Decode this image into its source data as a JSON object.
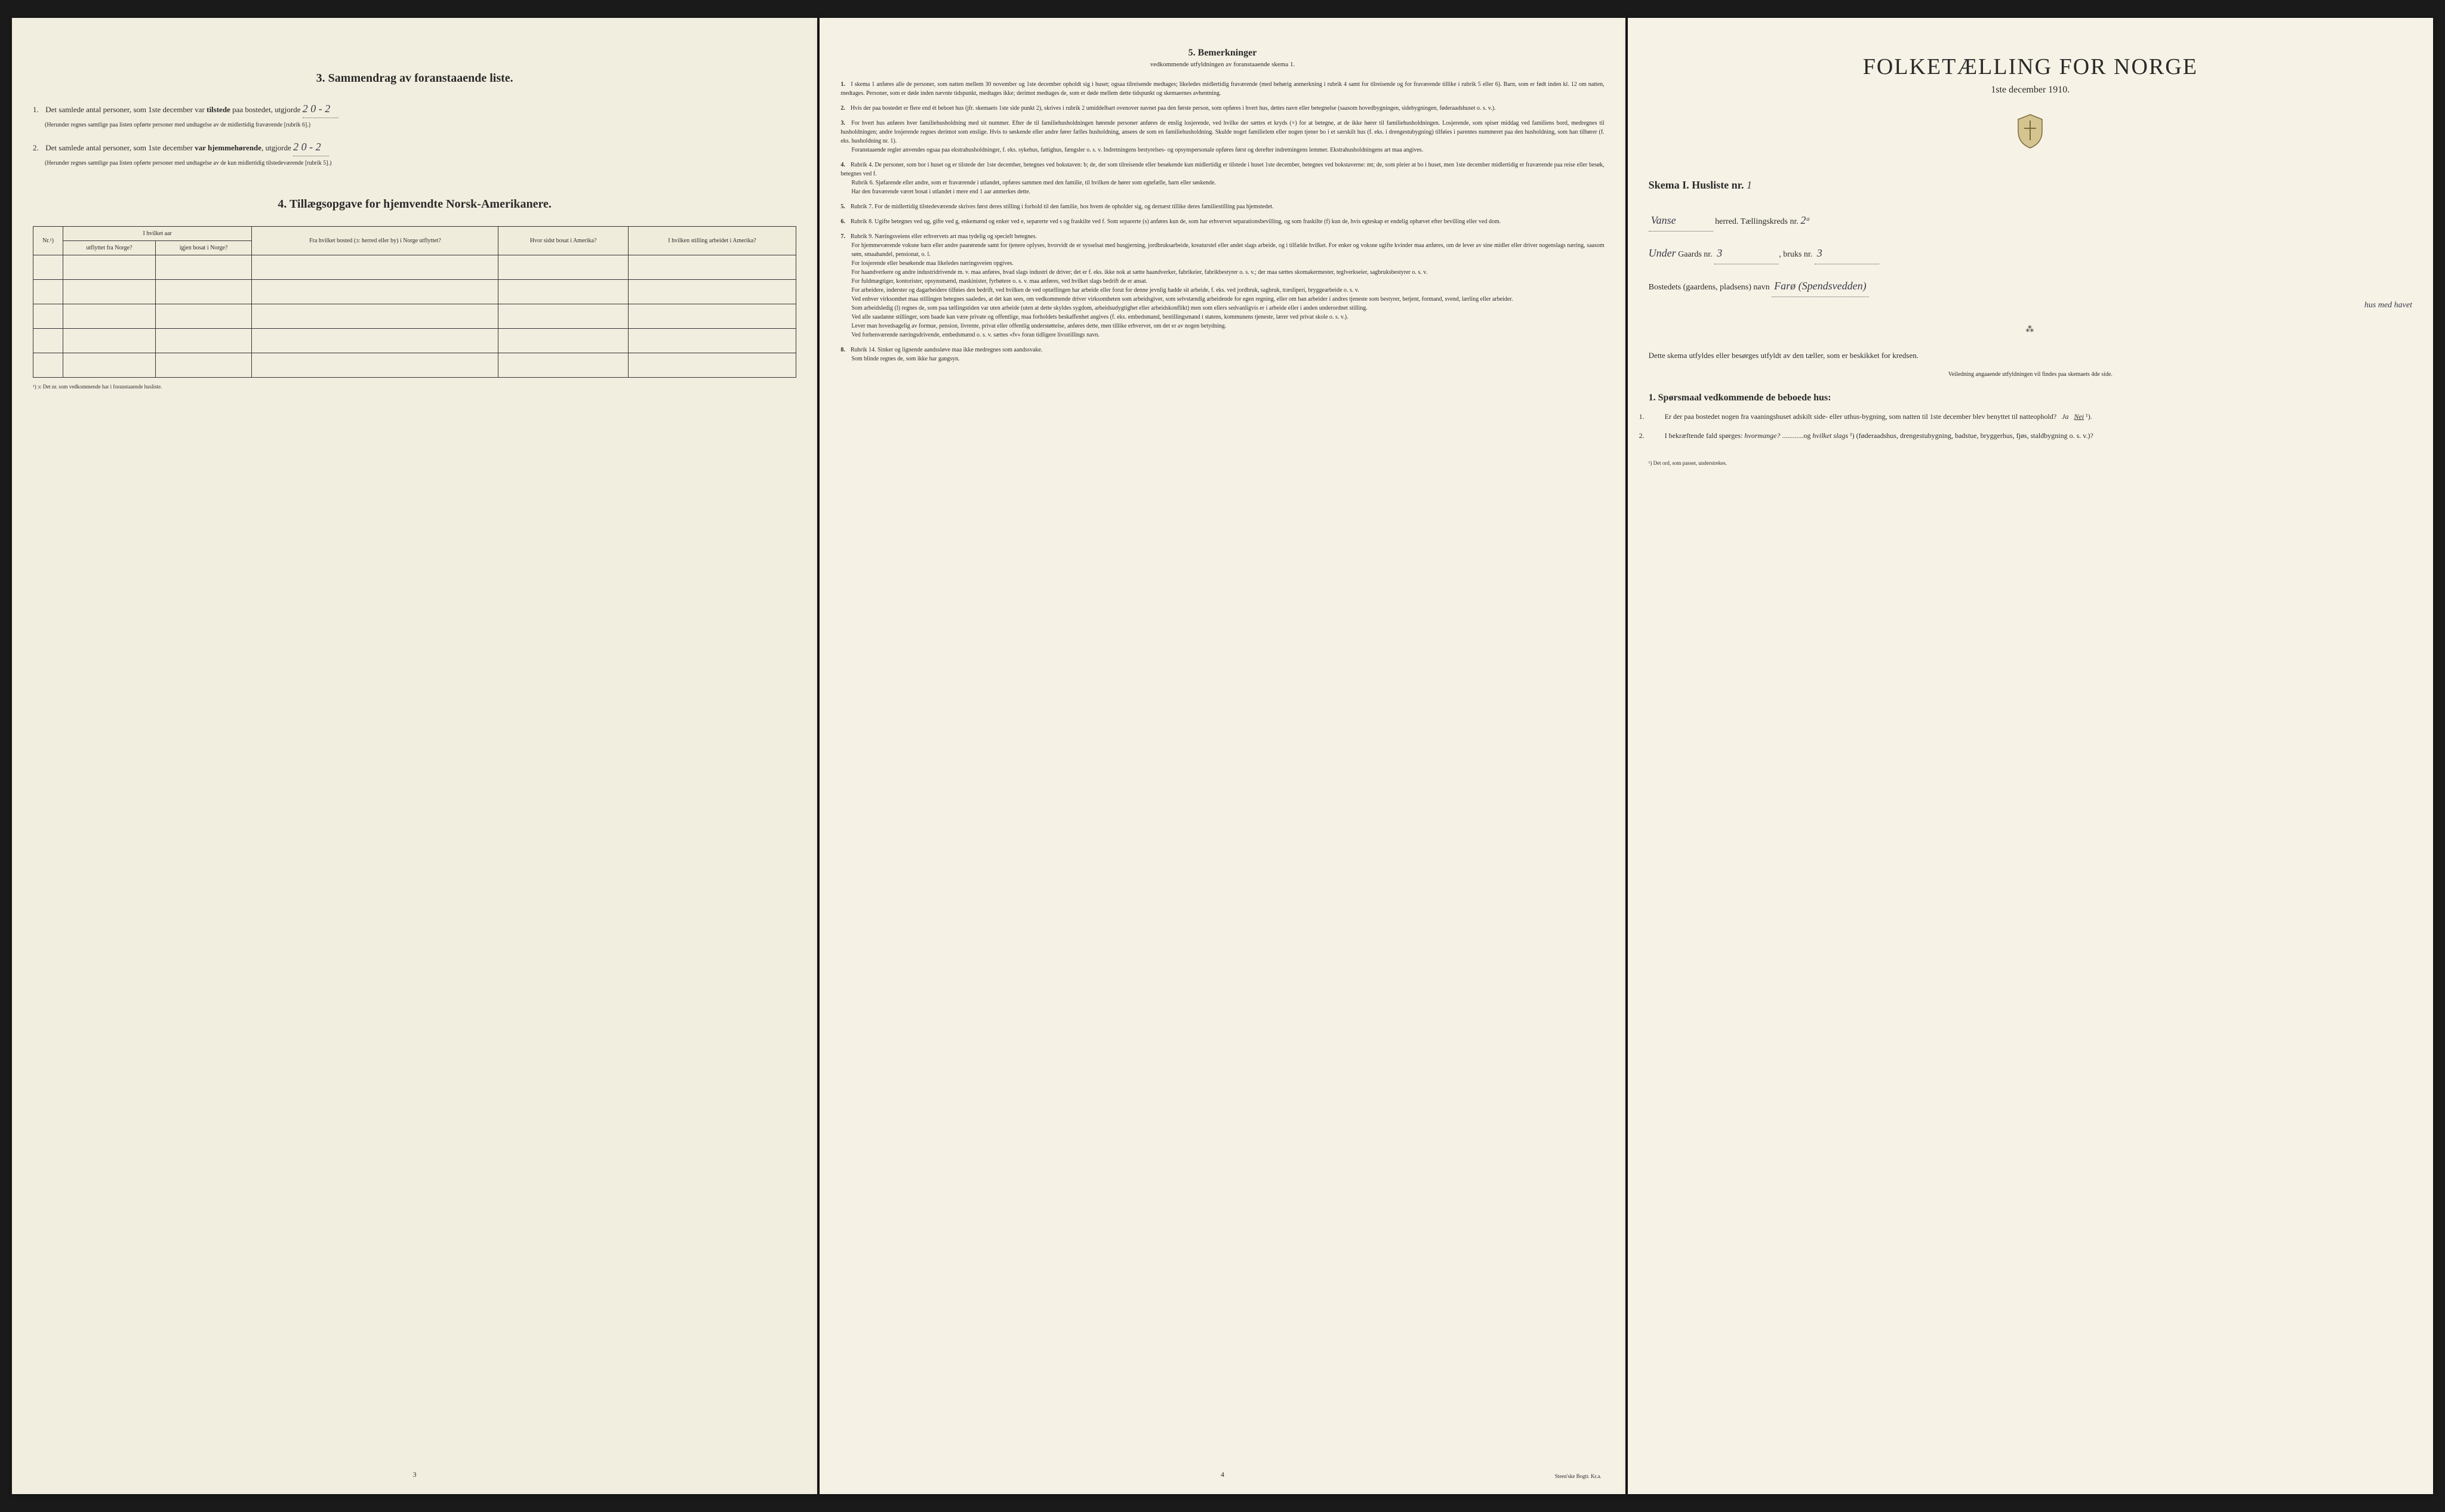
{
  "left_panel": {
    "section3": {
      "heading": "3.  Sammendrag av foranstaaende liste.",
      "item1": {
        "num": "1.",
        "text_before": "Det samlede antal personer, som 1ste december var ",
        "text_bold": "tilstede",
        "text_after": " paa bostedet, utgjorde",
        "value": "2   0 - 2",
        "note": "(Herunder regnes samtlige paa listen opførte personer med undtagelse av de midlertidig fraværende [rubrik 6].)"
      },
      "item2": {
        "num": "2.",
        "text_before": "Det samlede antal personer, som 1ste december ",
        "text_bold": "var hjemmehørende",
        "text_after": ", utgjorde",
        "value": "2   0 - 2",
        "note": "(Herunder regnes samtlige paa listen opførte personer med undtagelse av de kun midlertidig tilstedeværende [rubrik 5].)"
      }
    },
    "section4": {
      "heading": "4.  Tillægsopgave for hjemvendte Norsk-Amerikanere.",
      "table": {
        "headers": {
          "col1": "Nr.¹)",
          "col2_group": "I hvilket aar",
          "col2a": "utflyttet fra Norge?",
          "col2b": "igjen bosat i Norge?",
          "col3": "Fra hvilket bosted (ɔ: herred eller by) i Norge utflyttet?",
          "col4": "Hvor sidst bosat i Amerika?",
          "col5": "I hvilken stilling arbeidet i Amerika?"
        },
        "row_count": 5
      },
      "footnote": "¹) ɔ: Det nr. som vedkommende har i foranstaaende husliste."
    },
    "page_num": "3"
  },
  "middle_panel": {
    "heading": "5.  Bemerkninger",
    "subheading": "vedkommende utfyldningen av foranstaaende skema 1.",
    "items": [
      {
        "num": "1.",
        "text": "I skema 1 anføres alle de personer, som natten mellem 30 november og 1ste december opholdt sig i huset; ogsaa tilreisende medtages; likeledes midlertidig fraværende (med behørig anmerkning i rubrik 4 samt for tilreisende og for fraværende tillike i rubrik 5 eller 6). Barn, som er født inden kl. 12 om natten, medtages. Personer, som er døde inden nævnte tidspunkt, medtages ikke; derimot medtages de, som er døde mellem dette tidspunkt og skemaernes avhentning."
      },
      {
        "num": "2.",
        "text": "Hvis der paa bostedet er flere end ét beboet hus (jfr. skemaets 1ste side punkt 2), skrives i rubrik 2 umiddelbart ovenover navnet paa den første person, som opføres i hvert hus, dettes navn eller betegnelse (saasom hovedbygningen, sidebygningen, føderaadshuset o. s. v.)."
      },
      {
        "num": "3.",
        "text": "For hvert hus anføres hver familiehusholdning med sit nummer. Efter de til familiehusholdningen hørende personer anføres de enslig losjerende, ved hvilke der sættes et kryds (×) for at betegne, at de ikke hører til familiehusholdningen. Losjerende, som spiser middag ved familiens bord, medregnes til husholdningen; andre losjerende regnes derimot som enslige. Hvis to søskende eller andre fører fælles husholdning, ansees de som en familiehusholdning. Skulde noget familielem eller nogen tjener bo i et særskilt hus (f. eks. i drengestubygning) tilføies i parentes nummeret paa den husholdning, som han tilhører (f. eks. husholdning nr. 1).",
        "extra": "Foranstaaende regler anvendes ogsaa paa ekstrahusholdninger, f. eks. sykehus, fattighus, fængsler o. s. v. Indretningens bestyrelses- og opsynspersonale opføres først og derefter indretningens lemmer. Ekstrahusholdningens art maa angives."
      },
      {
        "num": "4.",
        "text": "Rubrik 4. De personer, som bor i huset og er tilstede der 1ste december, betegnes ved bokstaven: b; de, der som tilreisende eller besøkende kun midlertidig er tilstede i huset 1ste december, betegnes ved bokstaverne: mt; de, som pleier at bo i huset, men 1ste december midlertidig er fraværende paa reise eller besøk, betegnes ved f.",
        "extra": "Rubrik 6. Sjøfarende eller andre, som er fraværende i utlandet, opføres sammen med den familie, til hvilken de hører som egtefælle, barn eller søskende.",
        "extra2": "Har den fraværende været bosat i utlandet i mere end 1 aar anmerkes dette."
      },
      {
        "num": "5.",
        "text": "Rubrik 7. For de midlertidig tilstedeværende skrives først deres stilling i forhold til den familie, hos hvem de opholder sig, og dernæst tillike deres familiestilling paa hjemstedet."
      },
      {
        "num": "6.",
        "text": "Rubrik 8. Ugifte betegnes ved ug, gifte ved g, enkemænd og enker ved e, separerte ved s og fraskilte ved f. Som separerte (s) anføres kun de, som har erhvervet separationsbevilling, og som fraskilte (f) kun de, hvis egteskap er endelig ophævet efter bevilling eller ved dom."
      },
      {
        "num": "7.",
        "text": "Rubrik 9. Næringsveiens eller erhvervets art maa tydelig og specielt betegnes.",
        "paragraphs": [
          "For hjemmeværende voksne barn eller andre paarørende samt for tjenere oplyses, hvorvidt de er sysselsat med husgjerning, jordbruksarbeide, kreaturstel eller andet slags arbeide, og i tilfælde hvilket. For enker og voksne ugifte kvinder maa anføres, om de lever av sine midler eller driver nogenslags næring, saasom søm, smaahandel, pensionat, o. l.",
          "For losjerende eller besøkende maa likeledes næringsveien opgives.",
          "For haandverkere og andre industridrivende m. v. maa anføres, hvad slags industri de driver; det er f. eks. ikke nok at sætte haandverker, fabrikeier, fabrikbestyrer o. s. v.; der maa sættes skomakermester, teglverkseier, sagbruksbestyrer o. s. v.",
          "For fuldmægtiger, kontorister, opsynsmænd, maskinister, fyrbøtere o. s. v. maa anføres, ved hvilket slags bedrift de er ansat.",
          "For arbeidere, inderster og dagarbeidere tilføies den bedrift, ved hvilken de ved optællingen har arbeide eller forut for denne jevnlig hadde sit arbeide, f. eks. ved jordbruk, sagbruk, træsliperi, bryggearbeide o. s. v.",
          "Ved enhver virksomhet maa stillingen betegnes saaledes, at det kan sees, om vedkommende driver virksomheten som arbeidsgiver, som selvstændig arbeidende for egen regning, eller om han arbeider i andres tjeneste som bestyrer, betjent, formand, svend, lærling eller arbeider.",
          "Som arbeidsledig (l) regnes de, som paa tællingstiden var uten arbeide (uten at dette skyldes sygdom, arbeidsudygtighet eller arbeidskonflikt) men som ellers sedvanligvis er i arbeide eller i anden underordnet stilling.",
          "Ved alle saadanne stillinger, som baade kan være private og offentlige, maa forholdets beskaffenhet angives (f. eks. embedsmand, bestillingsmand i statens, kommunens tjeneste, lærer ved privat skole o. s. v.).",
          "Lever man hovedsagelig av formue, pension, livrente, privat eller offentlig understøttelse, anføres dette, men tillike erhvervet, om det er av nogen betydning.",
          "Ved forhenværende næringsdrivende, embedsmænd o. s. v. sættes «fv» foran tidligere livsstillings navn."
        ]
      },
      {
        "num": "8.",
        "text": "Rubrik 14. Sinker og lignende aandssløve maa ikke medregnes som aandssvake.",
        "extra": "Som blinde regnes de, som ikke har gangsyn."
      }
    ],
    "page_num": "4",
    "printer": "Steen'ske Bogtr. Kr.a."
  },
  "right_panel": {
    "title": "FOLKETÆLLING FOR NORGE",
    "date": "1ste december 1910.",
    "skema_label": "Skema I.  Husliste nr.",
    "husliste_nr": "1",
    "herred_value": "Vanse",
    "herred_label": "herred.  Tællingskreds nr.",
    "kreds_nr": "2ᵃ",
    "line2_prefix": "Under",
    "gaards_label": "Gaards nr.",
    "gaards_nr": "3",
    "bruks_label": "bruks nr.",
    "bruks_nr": "3",
    "bosted_label": "Bostedets (gaardens, pladsens) navn",
    "bosted_value": "Farø (Spendsvedden)",
    "bosted_extra": "hus med havet",
    "body_text": "Dette skema utfyldes eller besørges utfyldt av den tæller, som er beskikket for kredsen.",
    "small_note": "Veiledning angaaende utfyldningen vil findes paa skemaets 4de side.",
    "questions_heading": "1. Spørsmaal vedkommende de beboede hus:",
    "q1": {
      "num": "1.",
      "text": "Er der paa bostedet nogen fra vaaningshuset adskilt side- eller uthus-bygning, som natten til 1ste december blev benyttet til natteophold?  Ja  Nei ¹)."
    },
    "q2": {
      "num": "2.",
      "text_before": "I bekræftende fald spørges: ",
      "text_italic1": "hvormange?",
      "text_mid": " ............og ",
      "text_italic2": "hvilket slags",
      "text_after": "¹) (føderaadshus, drengestubygning, badstue, bryggerhus, fjøs, staldbygning o. s. v.)?"
    },
    "footnote": "¹) Det ord, som passer, understrekes."
  },
  "colors": {
    "paper_left": "#f2eedf",
    "paper_middle": "#f5f1e5",
    "paper_right": "#f6f2e6",
    "background": "#1a1a1a",
    "text": "#2a2a2a",
    "handwriting": "#3a3a4a"
  }
}
